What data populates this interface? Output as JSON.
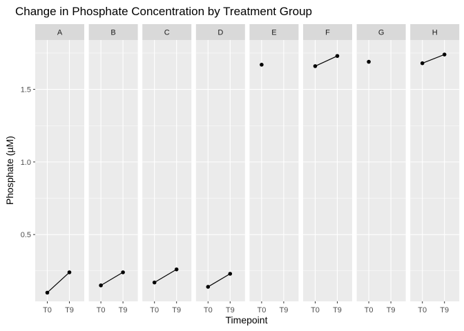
{
  "chart_data": {
    "type": "line",
    "title": "Change in Phosphate Concentration by Treatment Group",
    "xlabel": "Timepoint",
    "ylabel": "Phosphate (µM)",
    "x_categories": [
      "T0",
      "T9"
    ],
    "y_ticks": [
      0.5,
      1.0,
      1.5
    ],
    "y_tick_labels": [
      "0.5",
      "1.0",
      "1.5"
    ],
    "ylim": [
      0.04,
      1.84
    ],
    "grid": true,
    "facets": [
      {
        "label": "A",
        "values": [
          0.1,
          0.24
        ]
      },
      {
        "label": "B",
        "values": [
          0.15,
          0.24
        ]
      },
      {
        "label": "C",
        "values": [
          0.17,
          0.26
        ]
      },
      {
        "label": "D",
        "values": [
          0.14,
          0.23
        ]
      },
      {
        "label": "E",
        "values": [
          1.67,
          null
        ]
      },
      {
        "label": "F",
        "values": [
          1.66,
          1.73
        ]
      },
      {
        "label": "G",
        "values": [
          1.69,
          null
        ]
      },
      {
        "label": "H",
        "values": [
          1.68,
          1.74
        ]
      }
    ]
  },
  "colors": {
    "panel_bg": "#ebebeb",
    "strip_bg": "#d9d9d9",
    "grid_major": "#ffffff",
    "point": "#000000",
    "line": "#000000"
  }
}
